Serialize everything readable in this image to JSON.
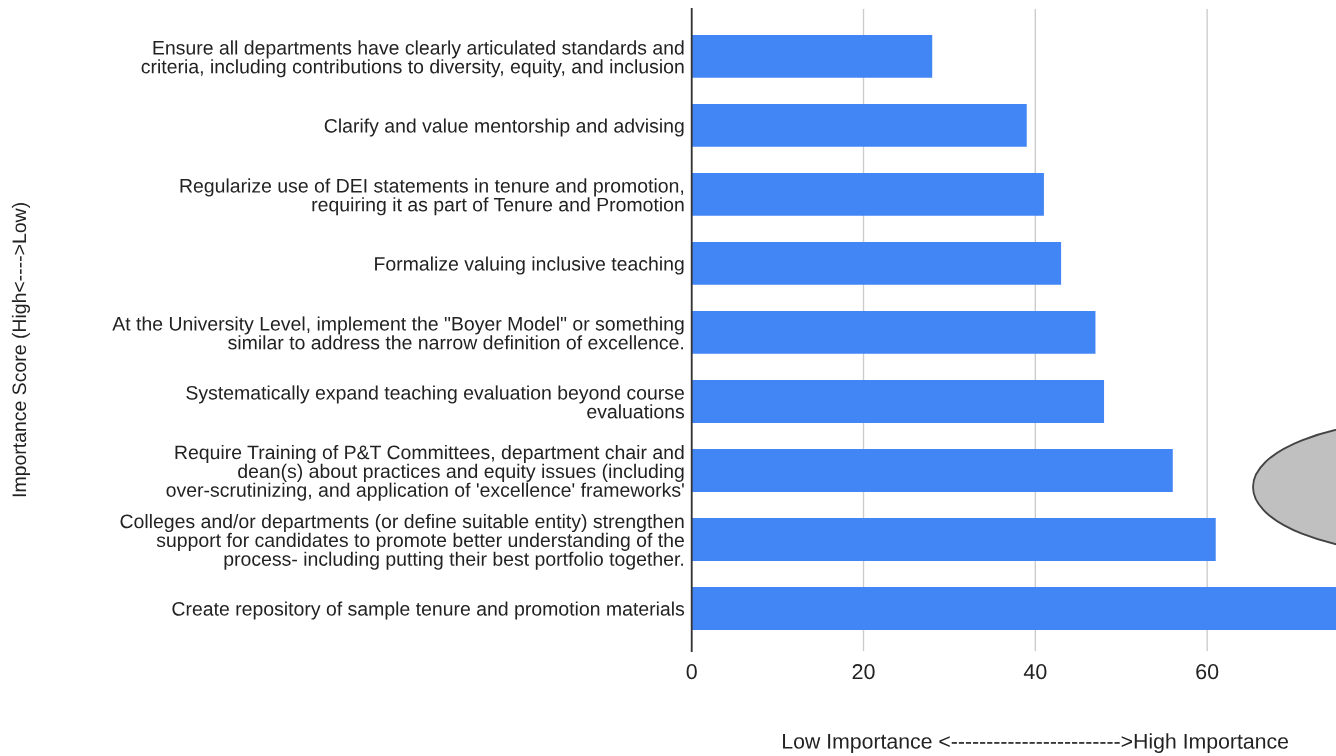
{
  "chart_data": {
    "type": "bar",
    "orientation": "horizontal",
    "xlabel": "Low Importance <------------------------>High Importance",
    "ylabel": "Importance Score (High<---->Low)",
    "categories": [
      "Ensure all departments have clearly articulated standards and\ncriteria, including contributions to diversity, equity, and inclusion",
      "Clarify and value mentorship and advising",
      "Regularize use of DEI statements in tenure and promotion,\nrequiring it as part of Tenure and Promotion",
      "Formalize valuing inclusive teaching",
      "At the University Level, implement the \"Boyer Model\" or something\nsimilar to address the narrow definition of excellence.",
      "Systematically expand teaching evaluation beyond course\nevaluations",
      "Require Training of P&T Committees, department chair and\ndean(s) about practices and equity issues (including\nover-scrutinizing, and application of 'excellence' frameworks'",
      "Colleges and/or departments (or define suitable entity) strengthen\nsupport for candidates to promote better understanding of the\nprocess- including putting their best portfolio together.",
      "Create repository of sample tenure and promotion materials"
    ],
    "values": [
      28,
      39,
      41,
      43,
      47,
      48,
      56,
      61,
      75
    ],
    "color": "#4285f4",
    "xlim": [
      0,
      75
    ],
    "xticks": [
      0,
      20,
      40,
      60
    ],
    "grid": "x"
  }
}
